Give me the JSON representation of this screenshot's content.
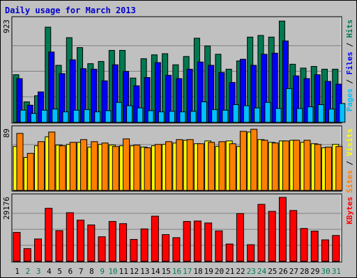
{
  "title": "Daily usage for March 2013",
  "colors": {
    "hits": "#007a50",
    "files": "#0000ff",
    "pages": "#00c0ff",
    "visits": "#ffff00",
    "sites": "#ff8000",
    "kbytes": "#ff0000",
    "weekend_label": "#007a50",
    "weekday_label": "#000000"
  },
  "chart_data": [
    {
      "type": "bar",
      "name": "hits-files-pages",
      "ymax_label": "923",
      "ylim": [
        0,
        923
      ],
      "legend": [
        {
          "label": "Pages",
          "color": "#00c0ff"
        },
        {
          "label": "Files",
          "color": "#0000ff"
        },
        {
          "label": "Hits",
          "color": "#007a50"
        }
      ],
      "categories": [
        "1",
        "2",
        "3",
        "4",
        "5",
        "6",
        "7",
        "8",
        "9",
        "10",
        "11",
        "12",
        "13",
        "14",
        "15",
        "16",
        "17",
        "18",
        "19",
        "20",
        "21",
        "22",
        "23",
        "24",
        "25",
        "26",
        "27",
        "28",
        "29",
        "30",
        "31"
      ],
      "weekend": [
        false,
        true,
        true,
        false,
        false,
        false,
        false,
        false,
        true,
        true,
        false,
        false,
        false,
        false,
        false,
        true,
        true,
        false,
        false,
        false,
        false,
        false,
        true,
        true,
        false,
        false,
        false,
        false,
        false,
        true,
        true
      ],
      "series": [
        {
          "name": "Hits",
          "values": [
            430,
            185,
            240,
            860,
            515,
            765,
            675,
            530,
            550,
            650,
            650,
            400,
            575,
            610,
            620,
            520,
            595,
            760,
            690,
            615,
            480,
            555,
            770,
            785,
            770,
            915,
            525,
            490,
            505,
            480,
            480
          ]
        },
        {
          "name": "Files",
          "values": [
            395,
            155,
            275,
            635,
            440,
            565,
            485,
            480,
            375,
            520,
            460,
            330,
            405,
            540,
            425,
            395,
            480,
            545,
            515,
            450,
            360,
            570,
            515,
            615,
            625,
            735,
            420,
            395,
            430,
            370,
            345
          ]
        },
        {
          "name": "Pages",
          "values": [
            110,
            80,
            110,
            120,
            95,
            110,
            115,
            95,
            105,
            180,
            150,
            130,
            105,
            95,
            100,
            95,
            100,
            185,
            115,
            110,
            160,
            150,
            130,
            180,
            125,
            305,
            125,
            140,
            160,
            120,
            170
          ]
        }
      ]
    },
    {
      "type": "bar",
      "name": "visits-sites",
      "ymax_label": "89",
      "ylim": [
        0,
        89
      ],
      "legend": [
        {
          "label": "Sites",
          "color": "#ff8000"
        },
        {
          "label": "Visits",
          "color": "#ffff00"
        }
      ],
      "categories": [
        "1",
        "2",
        "3",
        "4",
        "5",
        "6",
        "7",
        "8",
        "9",
        "10",
        "11",
        "12",
        "13",
        "14",
        "15",
        "16",
        "17",
        "18",
        "19",
        "20",
        "21",
        "22",
        "23",
        "24",
        "25",
        "26",
        "27",
        "28",
        "29",
        "30",
        "31"
      ],
      "series": [
        {
          "name": "Visits",
          "values": [
            64,
            48,
            65,
            78,
            66,
            67,
            70,
            63,
            67,
            66,
            65,
            65,
            63,
            65,
            67,
            69,
            73,
            68,
            72,
            64,
            72,
            64,
            85,
            74,
            70,
            72,
            73,
            70,
            68,
            62,
            67
          ]
        },
        {
          "name": "Sites",
          "values": [
            83,
            54,
            71,
            85,
            65,
            70,
            74,
            71,
            69,
            64,
            75,
            66,
            62,
            67,
            71,
            74,
            74,
            68,
            70,
            71,
            68,
            86,
            89,
            73,
            69,
            72,
            73,
            73,
            67,
            63,
            64
          ]
        }
      ]
    },
    {
      "type": "bar",
      "name": "kbytes",
      "ymax_label": "29176",
      "ylim": [
        0,
        29176
      ],
      "legend": [
        {
          "label": "KBytes",
          "color": "#ff0000"
        }
      ],
      "categories": [
        "1",
        "2",
        "3",
        "4",
        "5",
        "6",
        "7",
        "8",
        "9",
        "10",
        "11",
        "12",
        "13",
        "14",
        "15",
        "16",
        "17",
        "18",
        "19",
        "20",
        "21",
        "22",
        "23",
        "24",
        "25",
        "26",
        "27",
        "28",
        "29",
        "30",
        "31"
      ],
      "series": [
        {
          "name": "KBytes",
          "values": [
            13200,
            5800,
            10200,
            24200,
            14000,
            22200,
            18800,
            16600,
            11200,
            18200,
            17200,
            10000,
            14800,
            20600,
            12200,
            10800,
            18200,
            18400,
            17500,
            13900,
            7900,
            21800,
            7600,
            26000,
            22800,
            29176,
            23200,
            15000,
            13800,
            9800,
            11800
          ]
        }
      ]
    }
  ]
}
